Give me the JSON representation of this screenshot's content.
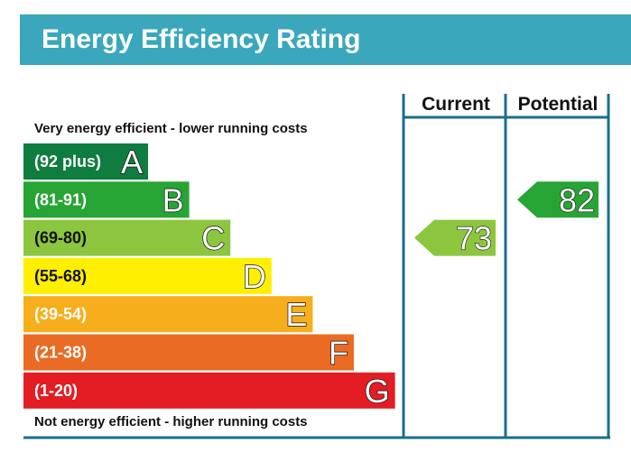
{
  "title": "Energy Efficiency Rating",
  "columns": {
    "current": "Current",
    "potential": "Potential"
  },
  "top_note": "Very energy efficient - lower running costs",
  "bottom_note": "Not energy efficient - higher running costs",
  "colors": {
    "header": "#3aa7bd",
    "frame": "#1a6e8a"
  },
  "chart_data": {
    "type": "bar",
    "title": "Energy Efficiency Rating",
    "bands": [
      {
        "letter": "A",
        "range": "(92 plus)",
        "color": "#0e7d3f"
      },
      {
        "letter": "B",
        "range": "(81-91)",
        "color": "#27a534"
      },
      {
        "letter": "C",
        "range": "(69-80)",
        "color": "#8cc63f"
      },
      {
        "letter": "D",
        "range": "(55-68)",
        "color": "#ffef00"
      },
      {
        "letter": "E",
        "range": "(39-54)",
        "color": "#f7ae1c"
      },
      {
        "letter": "F",
        "range": "(21-38)",
        "color": "#ea6b24"
      },
      {
        "letter": "G",
        "range": "(1-20)",
        "color": "#e31d23"
      }
    ],
    "current": {
      "value": 73,
      "band": "C",
      "color": "#8cc63f"
    },
    "potential": {
      "value": 82,
      "band": "B",
      "color": "#27a534"
    }
  }
}
